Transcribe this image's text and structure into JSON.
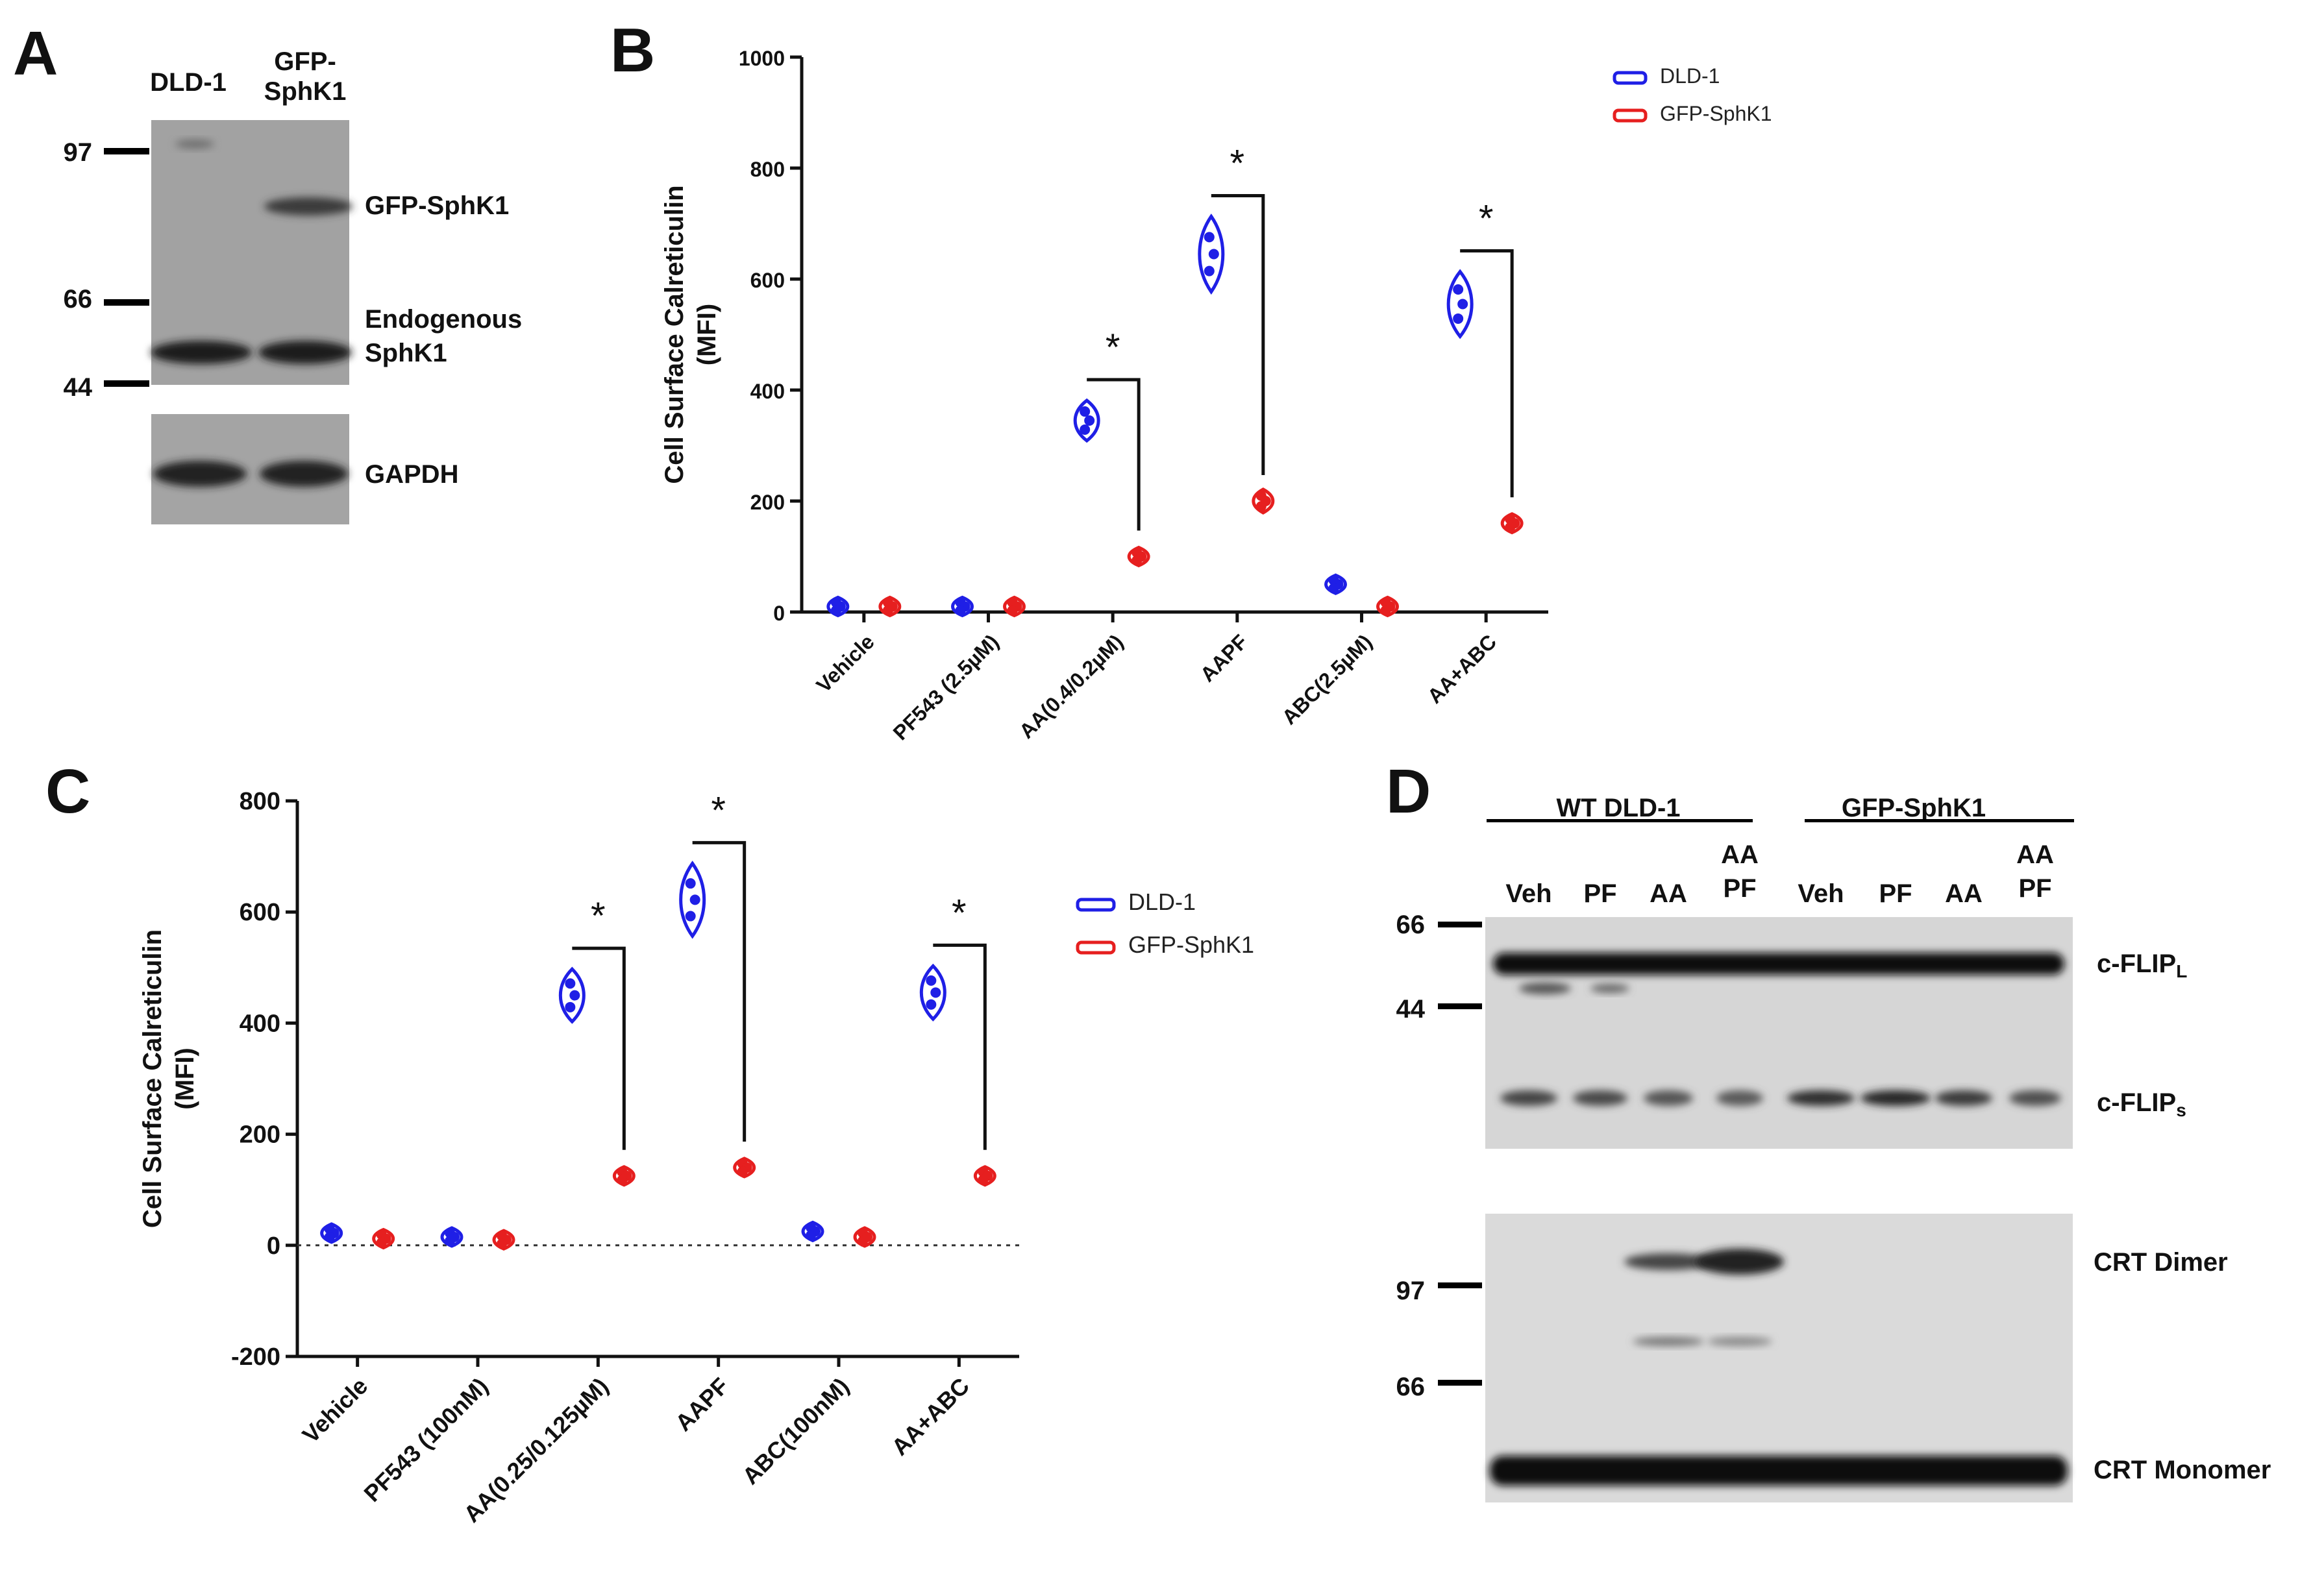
{
  "panels": {
    "A": {
      "letter": "A",
      "lanes": [
        "DLD-1",
        "GFP-\nSphK1"
      ],
      "markers": [
        "97",
        "66",
        "44"
      ],
      "band_labels": [
        "GFP-SphK1",
        "Endogenous\nSphK1",
        "GAPDH"
      ]
    },
    "B": {
      "letter": "B"
    },
    "C": {
      "letter": "C"
    },
    "D": {
      "letter": "D",
      "groups": [
        "WT DLD-1",
        "GFP-SphK1"
      ],
      "lanes": [
        "Veh",
        "PF",
        "AA",
        "AA\nPF",
        "Veh",
        "PF",
        "AA",
        "AA\nPF"
      ],
      "markers_top": [
        "66",
        "44"
      ],
      "markers_bottom": [
        "97",
        "66"
      ],
      "band_labels_top": [
        {
          "main": "c-FLIP",
          "sub": "L"
        },
        {
          "main": "c-FLIP",
          "sub": "s"
        }
      ],
      "band_labels_bottom": [
        "CRT Dimer",
        "CRT Monomer"
      ]
    }
  },
  "chart_data": [
    {
      "type": "violin",
      "panel": "B",
      "ylabel": "Cell Surface Calreticulin\n(MFI)",
      "ylim": [
        0,
        1000
      ],
      "yticks": [
        0,
        200,
        400,
        600,
        800,
        1000
      ],
      "categories": [
        "Vehicle",
        "PF543 (2.5µM)",
        "AA(0.4/0.2µM)",
        "AAPF",
        "ABC(2.5µM)",
        "AA+ABC"
      ],
      "legend": {
        "position": "top-right"
      },
      "series": [
        {
          "name": "DLD-1",
          "color": "#1f1fe6",
          "values": [
            10,
            10,
            345,
            645,
            50,
            555
          ]
        },
        {
          "name": "GFP-SphK1",
          "color": "#e61f1f",
          "values": [
            10,
            10,
            100,
            200,
            10,
            160
          ]
        }
      ],
      "significance": [
        {
          "category": 2,
          "label": "*"
        },
        {
          "category": 3,
          "label": "*"
        },
        {
          "category": 5,
          "label": "*"
        }
      ]
    },
    {
      "type": "violin",
      "panel": "C",
      "ylabel": "Cell Surface Calreticulin\n(MFI)",
      "ylim": [
        -200,
        800
      ],
      "yticks": [
        -200,
        0,
        200,
        400,
        600,
        800
      ],
      "zero_line": "dotted",
      "categories": [
        "Vehicle",
        "PF543 (100nM)",
        "AA(0.25/0.125µM)",
        "AAPF",
        "ABC(100nM)",
        "AA+ABC"
      ],
      "legend": {
        "position": "right"
      },
      "series": [
        {
          "name": "DLD-1",
          "color": "#1f1fe6",
          "values": [
            22,
            15,
            450,
            622,
            25,
            455
          ]
        },
        {
          "name": "GFP-SphK1",
          "color": "#e61f1f",
          "values": [
            12,
            10,
            125,
            140,
            15,
            125
          ]
        }
      ],
      "significance": [
        {
          "category": 2,
          "label": "*"
        },
        {
          "category": 3,
          "label": "*"
        },
        {
          "category": 5,
          "label": "*"
        }
      ]
    }
  ]
}
